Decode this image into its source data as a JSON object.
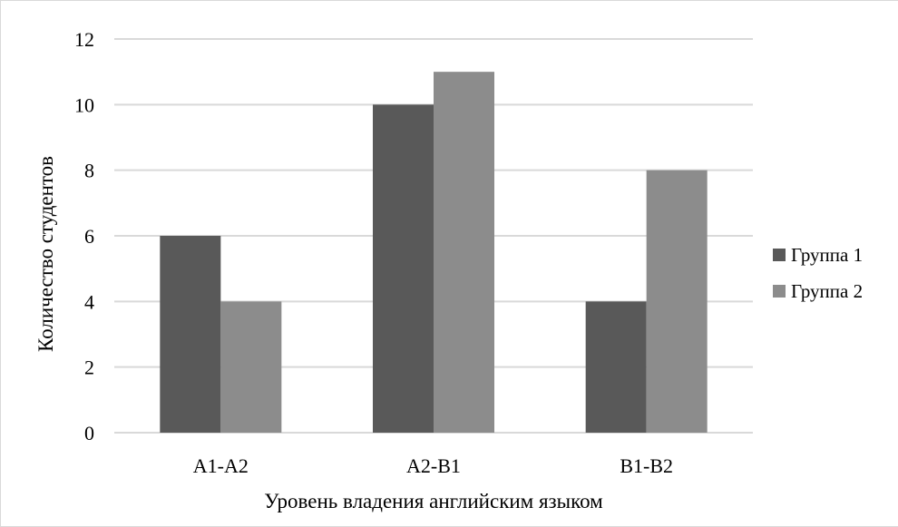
{
  "chart_data": {
    "type": "bar",
    "title": "",
    "xlabel": "Уровень владения английским языком",
    "ylabel": "Количество студентов",
    "categories": [
      "A1-A2",
      "A2-B1",
      "B1-B2"
    ],
    "series": [
      {
        "name": "Группа 1",
        "values": [
          6,
          10,
          4
        ],
        "color": "#595959"
      },
      {
        "name": "Группа 2",
        "values": [
          4,
          11,
          8
        ],
        "color": "#8c8c8c"
      }
    ],
    "ylim": [
      0,
      12
    ],
    "yticks": [
      0,
      2,
      4,
      6,
      8,
      10,
      12
    ],
    "grid": true,
    "legend_position": "right"
  }
}
